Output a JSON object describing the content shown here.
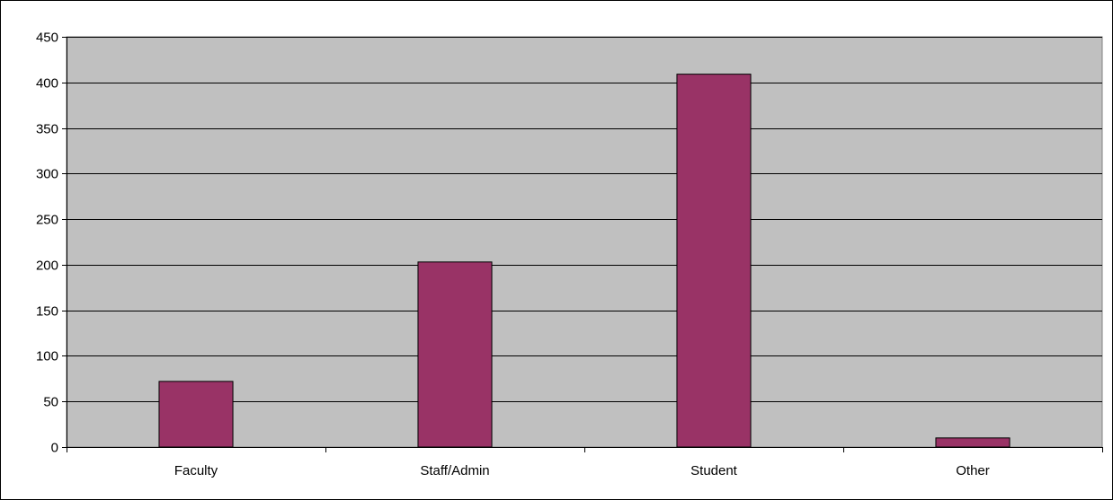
{
  "chart_data": {
    "type": "bar",
    "title": "",
    "xlabel": "",
    "ylabel": "",
    "categories": [
      "Faculty",
      "Staff/Admin",
      "Student",
      "Other"
    ],
    "values": [
      72,
      203,
      409,
      10
    ],
    "ylim": [
      0,
      450
    ],
    "yticks": [
      0,
      50,
      100,
      150,
      200,
      250,
      300,
      350,
      400,
      450
    ],
    "grid": true,
    "legend": "none",
    "colors": {
      "bar_fill": "#993366",
      "plot_background": "#c0c0c0",
      "gridline": "#000000"
    }
  }
}
